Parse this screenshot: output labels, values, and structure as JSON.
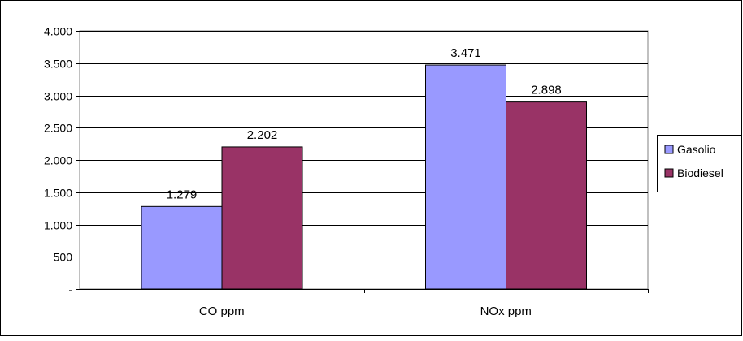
{
  "chart_data": {
    "type": "bar",
    "categories": [
      "CO ppm",
      "NOx ppm"
    ],
    "series": [
      {
        "name": "Gasolio",
        "values": [
          1279,
          3471
        ],
        "labels": [
          "1.279",
          "3.471"
        ],
        "color": "#9999ff"
      },
      {
        "name": "Biodiesel",
        "values": [
          2202,
          2898
        ],
        "labels": [
          "2.202",
          "2.898"
        ],
        "color": "#993366"
      }
    ],
    "ylim": [
      0,
      4000
    ],
    "yticks": [
      0,
      500,
      1000,
      1500,
      2000,
      2500,
      3000,
      3500,
      4000
    ],
    "ytick_labels": [
      "-",
      "500",
      "1.000",
      "1.500",
      "2.000",
      "2.500",
      "3.000",
      "3.500",
      "4.000"
    ],
    "grid": true,
    "legend_position": "right"
  },
  "colors": {
    "frame": "#000000",
    "gridline": "#000000",
    "plot_background": "#ffffff"
  }
}
